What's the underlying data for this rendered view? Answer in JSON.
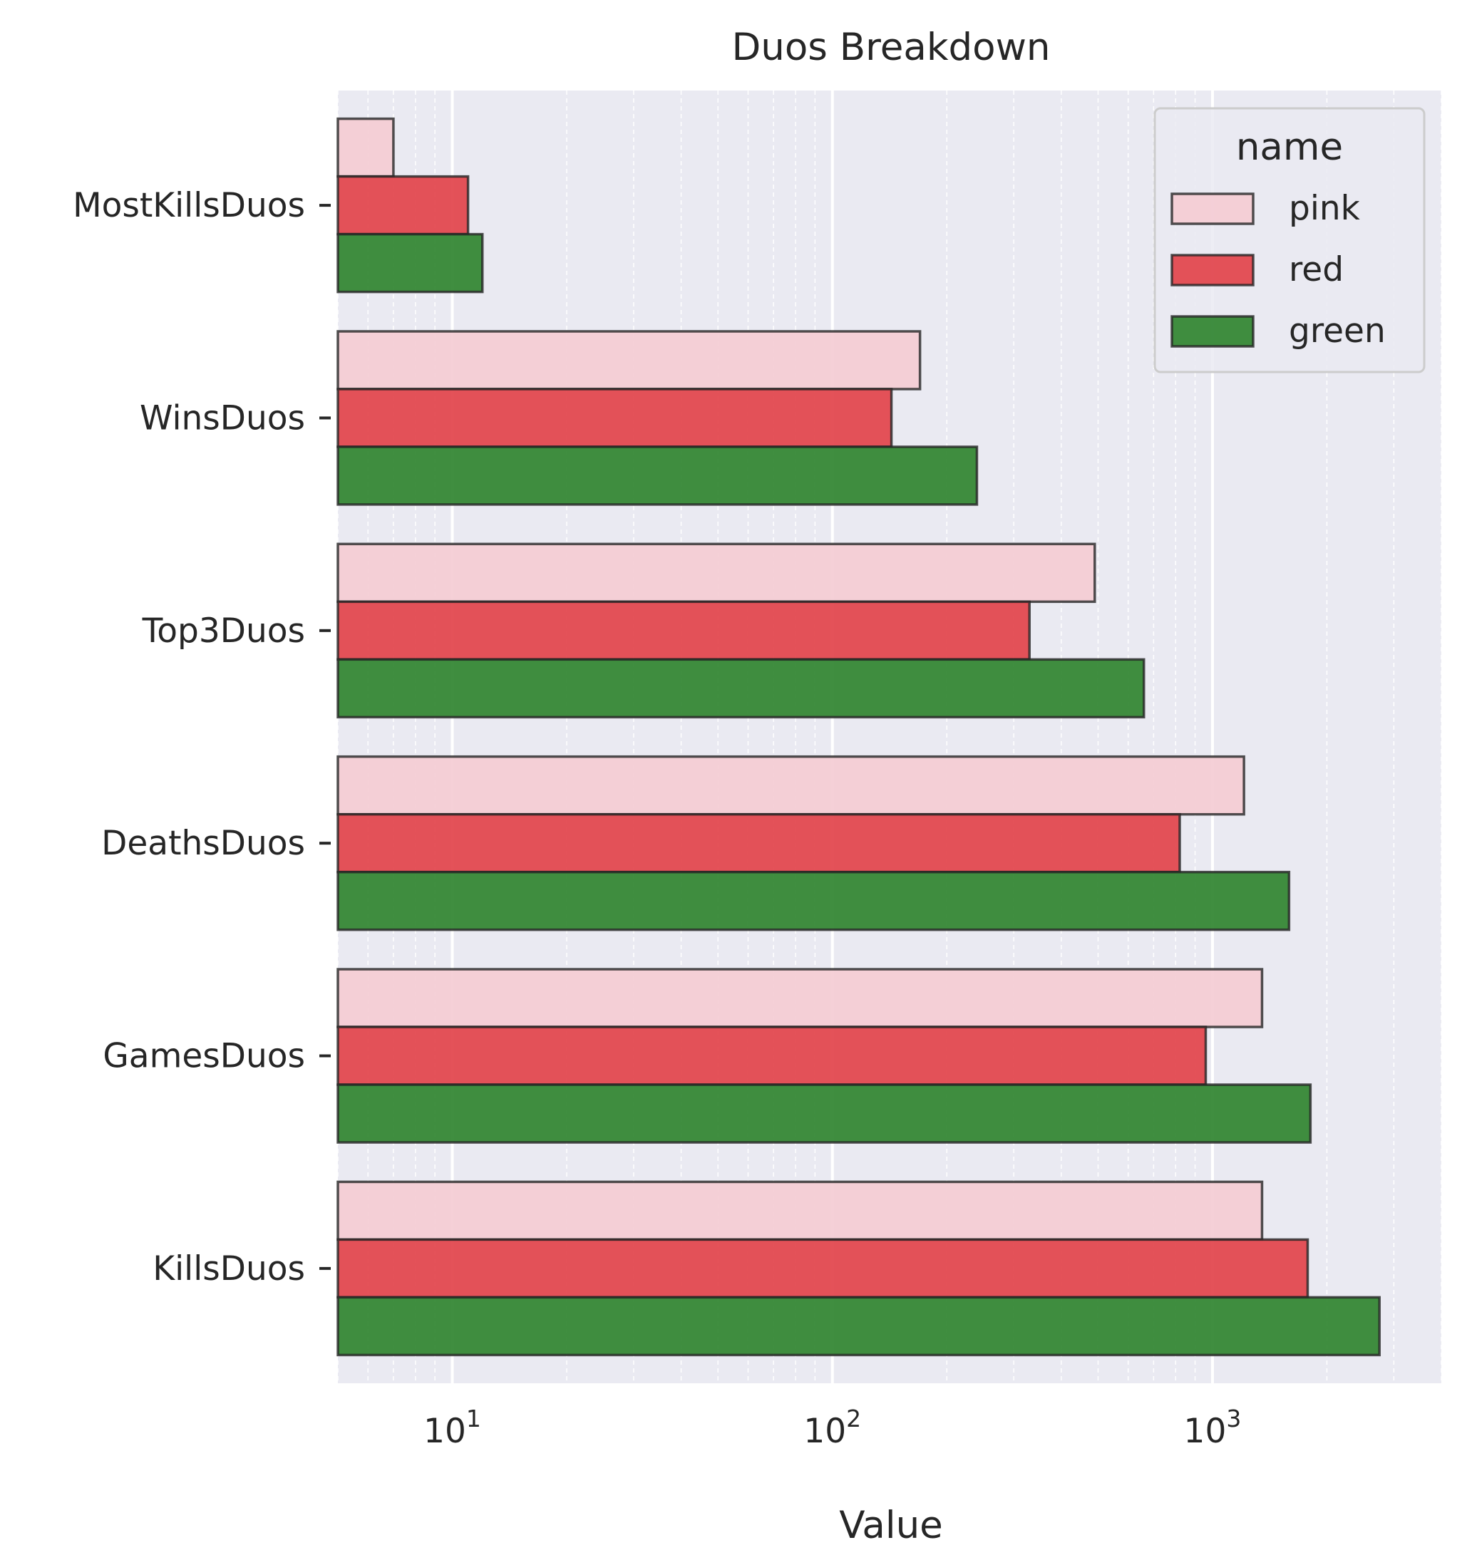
{
  "chart_data": {
    "type": "bar",
    "orientation": "horizontal",
    "title": "Duos Breakdown",
    "xlabel": "Value",
    "ylabel": "",
    "x_scale": "log",
    "xlim": [
      5,
      4000
    ],
    "x_ticks": [
      {
        "value": 10,
        "base": "10",
        "exp": "1"
      },
      {
        "value": 100,
        "base": "10",
        "exp": "2"
      },
      {
        "value": 1000,
        "base": "10",
        "exp": "3"
      }
    ],
    "categories": [
      "MostKillsDuos",
      "WinsDuos",
      "Top3Duos",
      "DeathsDuos",
      "GamesDuos",
      "KillsDuos"
    ],
    "series": [
      {
        "name": "pink",
        "color": "#f4ccd4",
        "values": [
          7,
          170,
          490,
          1210,
          1350,
          1350
        ]
      },
      {
        "name": "red",
        "color": "#e2434b",
        "values": [
          11,
          143,
          330,
          820,
          960,
          1780
        ]
      },
      {
        "name": "green",
        "color": "#308430",
        "values": [
          12,
          240,
          660,
          1590,
          1810,
          2750
        ]
      }
    ],
    "grid": true,
    "legend": {
      "title": "name",
      "position": "top-right"
    },
    "background_color": "#eaeaf2",
    "edge_color": "#262626"
  }
}
